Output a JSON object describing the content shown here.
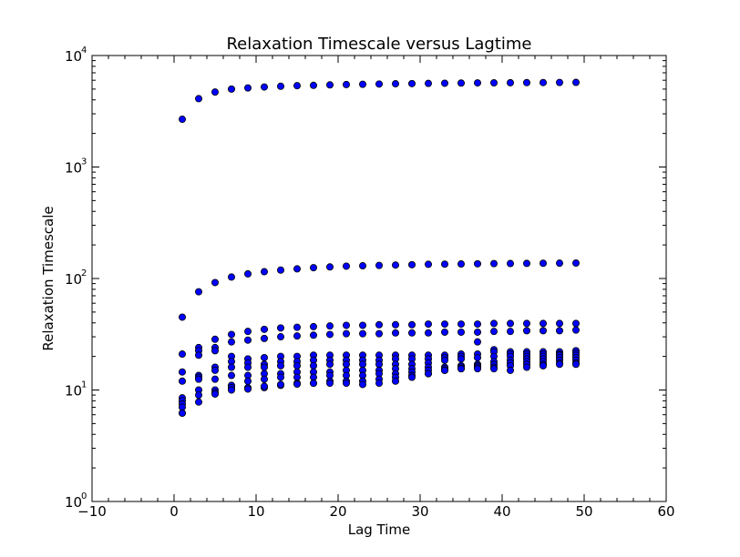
{
  "chart_data": {
    "type": "scatter",
    "title": "Relaxation Timescale versus Lagtime",
    "xlabel": "Lag Time",
    "ylabel": "Relaxation Timescale",
    "xlim": [
      -10,
      60
    ],
    "ylim": [
      1,
      10000
    ],
    "yscale": "log",
    "grid": false,
    "marker_color": "#0000ff",
    "marker_edge_color": "#000000",
    "x_ticks": [
      {
        "value": -10,
        "label": "−10"
      },
      {
        "value": 0,
        "label": "0"
      },
      {
        "value": 10,
        "label": "10"
      },
      {
        "value": 20,
        "label": "20"
      },
      {
        "value": 30,
        "label": "30"
      },
      {
        "value": 40,
        "label": "40"
      },
      {
        "value": 50,
        "label": "50"
      },
      {
        "value": 60,
        "label": "60"
      }
    ],
    "y_ticks": [
      {
        "value": 1,
        "base": "10",
        "exp": "0"
      },
      {
        "value": 10,
        "base": "10",
        "exp": "1"
      },
      {
        "value": 100,
        "base": "10",
        "exp": "2"
      },
      {
        "value": 1000,
        "base": "10",
        "exp": "3"
      },
      {
        "value": 10000,
        "base": "10",
        "exp": "4"
      }
    ],
    "x": [
      1,
      3,
      5,
      7,
      9,
      11,
      13,
      15,
      17,
      19,
      21,
      23,
      25,
      27,
      29,
      31,
      33,
      35,
      37,
      39,
      41,
      43,
      45,
      47,
      49
    ],
    "series": [
      {
        "values": [
          2680,
          4100,
          4700,
          5000,
          5120,
          5220,
          5300,
          5360,
          5400,
          5450,
          5490,
          5520,
          5550,
          5580,
          5600,
          5620,
          5640,
          5660,
          5680,
          5690,
          5700,
          5710,
          5720,
          5730,
          5740
        ]
      },
      {
        "values": [
          45,
          76,
          92,
          103,
          110,
          115,
          119,
          122,
          125,
          127,
          129,
          130,
          131,
          132,
          133,
          134,
          134.5,
          135,
          135.5,
          136,
          136.3,
          136.6,
          137,
          137.2,
          137.5
        ]
      },
      {
        "values": [
          21,
          24,
          28.5,
          31.5,
          33.5,
          35,
          36,
          36.5,
          37,
          37.5,
          38,
          38,
          38.5,
          38.5,
          38.5,
          39,
          39,
          39,
          39,
          39.5,
          39.5,
          39.5,
          39.5,
          39.5,
          39.5
        ]
      },
      {
        "values": [
          14.5,
          22.5,
          24,
          27,
          28,
          29,
          30,
          30.5,
          31,
          31.5,
          32,
          32,
          32,
          32.5,
          32.5,
          32.5,
          33,
          33,
          33,
          33.5,
          33.5,
          34,
          34,
          34,
          34.5
        ]
      },
      {
        "values": [
          12,
          20.5,
          22.5,
          20,
          19,
          19.5,
          20,
          20,
          20.5,
          20.5,
          20.5,
          20.5,
          20.5,
          20.5,
          20.5,
          20.5,
          20.5,
          21,
          27,
          23,
          22,
          22,
          22,
          22,
          22.5
        ]
      },
      {
        "values": [
          8.5,
          13.5,
          16,
          18,
          17.5,
          17,
          18,
          18,
          18.5,
          18.5,
          18.5,
          18.5,
          18.5,
          19,
          19,
          19,
          19.5,
          20,
          21,
          22,
          21,
          21,
          21,
          21,
          21.5
        ]
      },
      {
        "values": [
          8,
          13,
          15,
          16,
          16,
          16,
          16.5,
          16.5,
          16.5,
          17,
          17,
          17,
          17,
          17,
          17,
          17.5,
          18.5,
          19,
          19.5,
          20,
          20,
          20,
          20,
          20.5,
          20.5
        ]
      },
      {
        "values": [
          7.5,
          12.5,
          12.5,
          13.5,
          13.5,
          14,
          14,
          14.5,
          14.5,
          14.5,
          15,
          15,
          15,
          15.5,
          15.5,
          16,
          16,
          16.5,
          17,
          18,
          18.5,
          19,
          19,
          19.5,
          19.5
        ]
      },
      {
        "values": [
          7,
          10,
          10,
          11,
          12,
          12.5,
          13,
          13,
          13,
          13.5,
          13.5,
          13.5,
          14,
          14,
          14.5,
          15,
          15.5,
          16,
          16.5,
          17,
          17.5,
          18,
          18,
          18.5,
          18.5
        ]
      },
      {
        "values": [
          6.2,
          9,
          9.5,
          10.5,
          10.5,
          10.5,
          11,
          11.5,
          11.5,
          12,
          12,
          12,
          12.5,
          13,
          13.5,
          14,
          15,
          15.5,
          16,
          16,
          16.5,
          17,
          17,
          17.5,
          17.5
        ]
      },
      {
        "values": [
          6.2,
          7.8,
          9.2,
          10,
          10.2,
          10.8,
          11.2,
          11.3,
          11.5,
          11.5,
          11.5,
          11.2,
          11.5,
          12,
          13,
          14,
          15,
          15.5,
          15.5,
          15.5,
          15,
          16,
          16.5,
          17,
          17
        ]
      }
    ]
  }
}
